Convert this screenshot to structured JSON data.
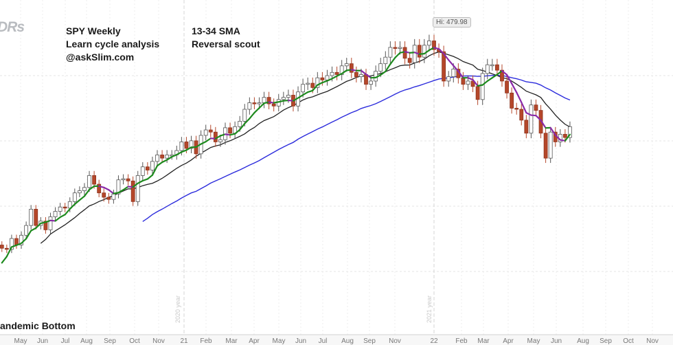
{
  "chart_data": {
    "type": "candlestick",
    "title_lines": [
      "SPY Weekly",
      "Learn cycle analysis",
      "@askSlim.com"
    ],
    "subtitle_lines": [
      "13-34 SMA",
      "Reversal scout"
    ],
    "annotation": "andemic Bottom",
    "hi_label": "Hi: 479.98",
    "hi_value": 479.98,
    "logo_text": "DRs",
    "sma_periods": [
      13,
      34
    ],
    "x_tick_labels": [
      "May",
      "Jun",
      "Jul",
      "Aug",
      "Sep",
      "Oct",
      "Nov",
      "21",
      "Feb",
      "Mar",
      "Apr",
      "May",
      "Jun",
      "Jul",
      "Aug",
      "Sep",
      "Nov",
      "22",
      "Feb",
      "Mar",
      "Apr",
      "May",
      "Jun",
      "Aug",
      "Sep",
      "Oct",
      "Nov"
    ],
    "year_labels": [
      "2020 year",
      "2021 year"
    ],
    "grid": true,
    "colors": {
      "up_candle": "#ffffff",
      "down_candle": "#b5472a",
      "fast_rising": "#1e8a1e",
      "fast_falling": "#8a2aa8",
      "sma13": "#222222",
      "sma34": "#2b2bdc"
    },
    "weekly_closes": [
      253,
      248,
      278,
      286,
      283,
      282,
      292,
      286,
      295,
      304,
      319,
      304,
      308,
      300,
      312,
      317,
      321,
      320,
      326,
      334,
      336,
      339,
      350,
      342,
      334,
      330,
      328,
      333,
      346,
      347,
      345,
      326,
      350,
      358,
      355,
      363,
      369,
      366,
      369,
      369,
      373,
      381,
      375,
      382,
      370,
      387,
      392,
      390,
      381,
      383,
      394,
      389,
      395,
      400,
      411,
      417,
      416,
      417,
      422,
      416,
      414,
      420,
      422,
      424,
      414,
      427,
      434,
      435,
      431,
      440,
      438,
      442,
      445,
      443,
      451,
      453,
      445,
      441,
      443,
      434,
      437,
      446,
      453,
      459,
      468,
      467,
      468,
      458,
      454,
      470,
      459,
      470,
      474,
      466,
      464,
      437,
      441,
      448,
      440,
      434,
      437,
      432,
      420,
      444,
      452,
      452,
      447,
      437,
      426,
      412,
      411,
      401,
      389,
      415,
      410,
      389,
      366,
      390,
      381,
      388,
      385,
      395
    ]
  }
}
